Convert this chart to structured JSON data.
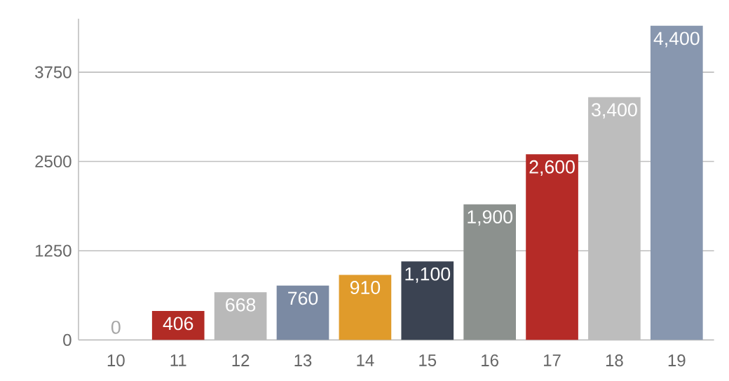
{
  "chart_data": {
    "type": "bar",
    "categories": [
      "10",
      "11",
      "12",
      "13",
      "14",
      "15",
      "16",
      "17",
      "18",
      "19"
    ],
    "values": [
      0,
      406,
      668,
      760,
      910,
      1100,
      1900,
      2600,
      3400,
      4400
    ],
    "colors": [
      "#c8c8c8",
      "#b22b25",
      "#b9b9b9",
      "#7b8aa3",
      "#e09b2b",
      "#3b4352",
      "#8c918e",
      "#b52b27",
      "#bdbdbd",
      "#8897af"
    ],
    "value_labels": [
      "0",
      "406",
      "668",
      "760",
      "910",
      "1,100",
      "1,900",
      "2,600",
      "3,400",
      "4,400"
    ],
    "ylim": [
      0,
      4500
    ],
    "yticks": [
      0,
      1250,
      2500,
      3750
    ],
    "grid": "y"
  }
}
